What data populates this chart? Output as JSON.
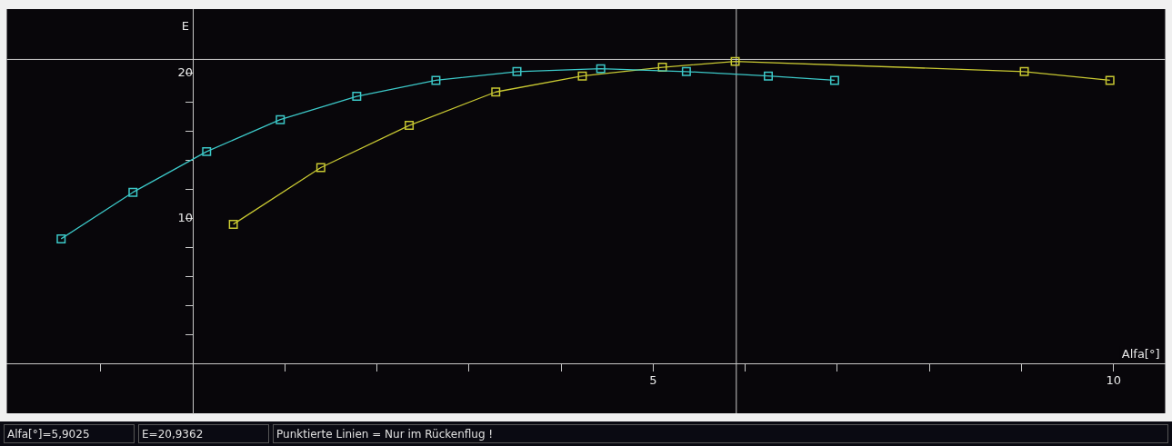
{
  "chart_data": {
    "type": "line",
    "xlabel": "Alfa[°]",
    "ylabel": "E",
    "xlim": [
      -2.02,
      10.56
    ],
    "ylim": [
      -3.4,
      24.4
    ],
    "xticks": [
      {
        "value": -1,
        "label": null
      },
      {
        "value": 1,
        "label": null
      },
      {
        "value": 2,
        "label": null
      },
      {
        "value": 3,
        "label": null
      },
      {
        "value": 4,
        "label": null
      },
      5,
      {
        "value": 6,
        "label": null
      },
      {
        "value": 7,
        "label": null
      },
      {
        "value": 8,
        "label": null
      },
      {
        "value": 9,
        "label": null
      },
      10
    ],
    "yticks": [
      {
        "value": 2,
        "label": null
      },
      {
        "value": 4,
        "label": null
      },
      {
        "value": 6,
        "label": null
      },
      {
        "value": 8,
        "label": null
      },
      10,
      {
        "value": 12,
        "label": null
      },
      {
        "value": 14,
        "label": null
      },
      {
        "value": 16,
        "label": null
      },
      {
        "value": 18,
        "label": null
      },
      20
    ],
    "series": [
      {
        "color": "#3cc8c8",
        "x": [
          -1.43,
          -0.65,
          0.15,
          0.95,
          1.78,
          2.64,
          3.52,
          4.43,
          5.36,
          6.25,
          6.97
        ],
        "values": [
          8.6,
          11.8,
          14.6,
          16.8,
          18.4,
          19.5,
          20.1,
          20.3,
          20.1,
          19.8,
          19.5
        ]
      },
      {
        "color": "#c8c832",
        "x": [
          0.44,
          1.39,
          2.35,
          3.29,
          4.23,
          5.1,
          5.89,
          9.03,
          9.96
        ],
        "values": [
          9.6,
          13.5,
          16.4,
          18.7,
          19.8,
          20.4,
          20.8,
          20.1,
          19.5
        ]
      }
    ],
    "marker": "square",
    "line_style": "solid",
    "grid": false,
    "legend": false,
    "ref_lines": [
      {
        "axis": "x",
        "value": 5.9025,
        "color": "#c8c8c8"
      },
      {
        "axis": "y",
        "value": 20.9362,
        "color": "#c8c8c8"
      }
    ],
    "annotations": [
      "Alfa[°]=5,9025",
      "E=20,9362",
      "Punktierte Linien = Nur im Rückenflug !"
    ]
  }
}
